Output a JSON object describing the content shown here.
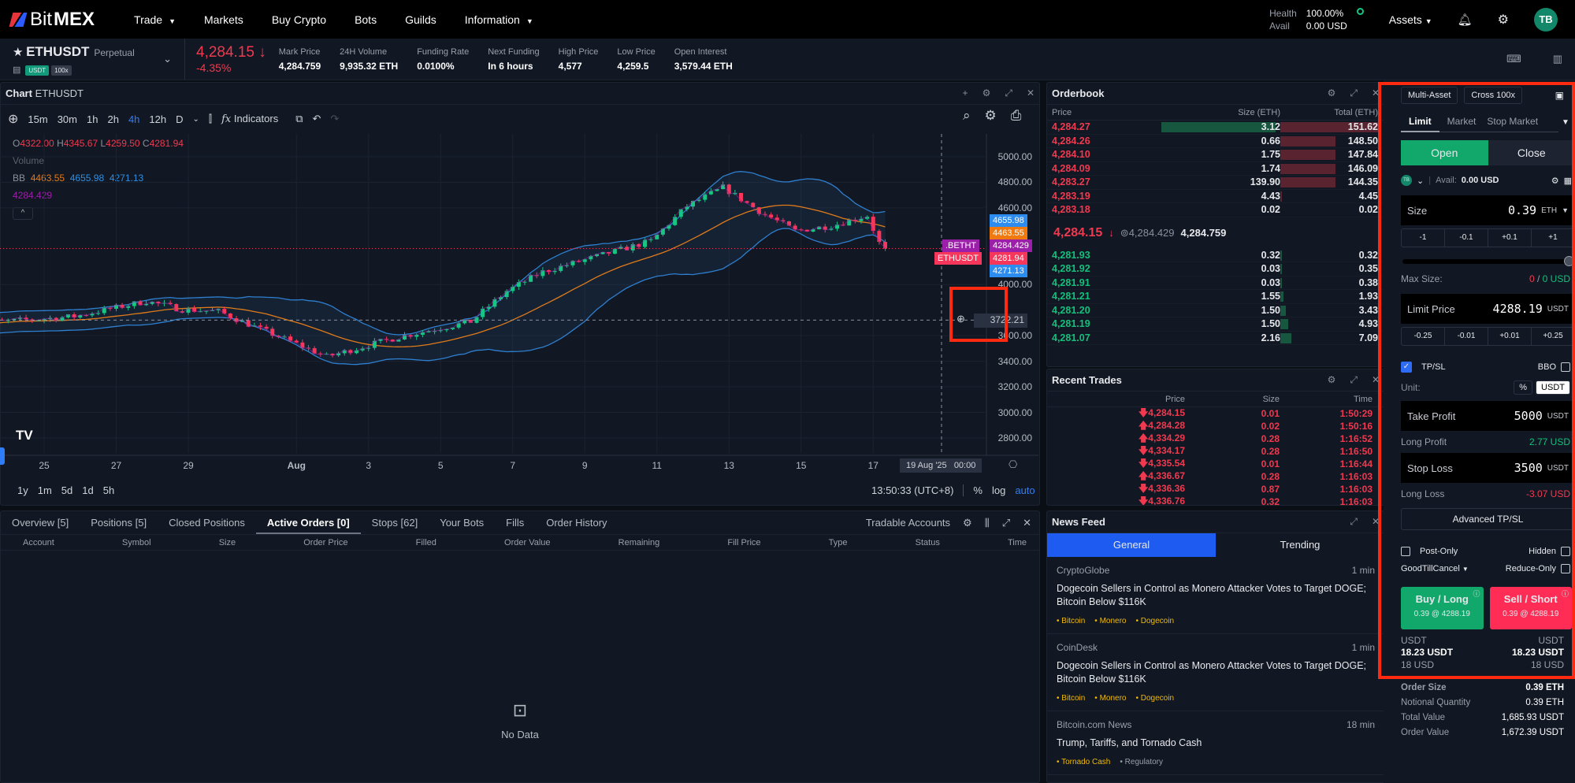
{
  "nav": {
    "brand_a": "Bit",
    "brand_b": "MEX",
    "items": [
      "Trade",
      "Markets",
      "Buy Crypto",
      "Bots",
      "Guilds",
      "Information"
    ],
    "health_label": "Health",
    "health_value": "100.00%",
    "avail_label": "Avail",
    "avail_value": "0.00 USD",
    "assets": "Assets",
    "avatar": "TB"
  },
  "ticker": {
    "symbol": "ETHUSDT",
    "type": "Perpetual",
    "badge_quote": "USDT",
    "badge_lev": "100x",
    "last": "4,284.15",
    "change": "-4.35%",
    "stats": [
      {
        "k": "Mark Price",
        "v": "4,284.759"
      },
      {
        "k": "24H Volume",
        "v": "9,935.32 ETH"
      },
      {
        "k": "Funding Rate",
        "v": "0.0100%"
      },
      {
        "k": "Next Funding",
        "v": "In 6 hours"
      },
      {
        "k": "High Price",
        "v": "4,577"
      },
      {
        "k": "Low Price",
        "v": "4,259.5"
      },
      {
        "k": "Open Interest",
        "v": "3,579.44 ETH"
      }
    ]
  },
  "chart": {
    "title": "Chart",
    "symbol": "ETHUSDT",
    "intervals": [
      "15m",
      "30m",
      "1h",
      "2h",
      "4h",
      "12h",
      "D"
    ],
    "active_interval": "4h",
    "indicators": "Indicators",
    "ohlc": {
      "o_l": "O",
      "o": "4322.00",
      "h_l": "H",
      "h": "4345.67",
      "l_l": "L",
      "l": "4259.50",
      "c_l": "C",
      "c": "4281.94"
    },
    "volume": "Volume",
    "bb_label": "BB",
    "bb_mid": "4463.55",
    "bb_up": "4655.98",
    "bb_low": "4271.13",
    "index_value": "4284.429",
    "y_ticks": [
      "5000.00",
      "4800.00",
      "4600.00",
      "4000.00",
      "3600.00",
      "3400.00",
      "3200.00",
      "3000.00",
      "2800.00"
    ],
    "y_tick_values": [
      5000,
      4800,
      4600,
      4000,
      3600,
      3400,
      3200,
      3000,
      2800
    ],
    "x_ticks": [
      "25",
      "27",
      "29",
      "Aug",
      "3",
      "5",
      "7",
      "9",
      "11",
      "13",
      "15",
      "17"
    ],
    "x_tick_days": [
      1,
      3,
      5,
      8,
      10,
      12,
      14,
      16,
      18,
      20,
      22,
      24
    ],
    "price_labels": {
      "upper": "4655.98",
      "mid": "4463.55",
      "index_sym": ".BETHT",
      "index": "4284.429",
      "last_sym": "ETHUSDT",
      "last": "4281.94",
      "lower": "4271.13",
      "crosshair": "3722.21"
    },
    "crosshair_date": "19 Aug '25   00:00",
    "ranges": [
      "1y",
      "1m",
      "5d",
      "1d",
      "5h"
    ],
    "clock": "13:50:33 (UTC+8)",
    "pct": "%",
    "log": "log",
    "auto": "auto",
    "path_keypoints": [
      [
        0,
        3700
      ],
      [
        1,
        3710
      ],
      [
        3,
        3750
      ],
      [
        5,
        3870
      ],
      [
        6,
        3805
      ],
      [
        7,
        3790
      ],
      [
        8,
        3670
      ],
      [
        9,
        3555
      ],
      [
        10,
        3436
      ],
      [
        12,
        3590
      ],
      [
        14,
        3710
      ],
      [
        15,
        3950
      ],
      [
        16,
        4100
      ],
      [
        18,
        4260
      ],
      [
        19,
        4340
      ],
      [
        20,
        4615
      ],
      [
        21,
        4760
      ],
      [
        22,
        4575
      ],
      [
        23,
        4420
      ],
      [
        24,
        4460
      ],
      [
        25,
        4540
      ],
      [
        25.4,
        4282
      ]
    ]
  },
  "orderbook": {
    "title": "Orderbook",
    "cols": [
      "Price",
      "Size (ETH)",
      "Total (ETH)"
    ],
    "asks": [
      [
        "4,284.27",
        "3.12",
        "151.62"
      ],
      [
        "4,284.26",
        "0.66",
        "148.50"
      ],
      [
        "4,284.10",
        "1.75",
        "147.84"
      ],
      [
        "4,284.09",
        "1.74",
        "146.09"
      ],
      [
        "4,283.27",
        "139.90",
        "144.35"
      ],
      [
        "4,283.19",
        "4.43",
        "4.45"
      ],
      [
        "4,283.18",
        "0.02",
        "0.02"
      ]
    ],
    "mid_last": "4,284.15",
    "mid_index": "4,284.429",
    "mid_mark": "4,284.759",
    "bids": [
      [
        "4,281.93",
        "0.32",
        "0.32"
      ],
      [
        "4,281.92",
        "0.03",
        "0.35"
      ],
      [
        "4,281.91",
        "0.03",
        "0.38"
      ],
      [
        "4,281.21",
        "1.55",
        "1.93"
      ],
      [
        "4,281.20",
        "1.50",
        "3.43"
      ],
      [
        "4,281.19",
        "1.50",
        "4.93"
      ],
      [
        "4,281.07",
        "2.16",
        "7.09"
      ]
    ]
  },
  "trades": {
    "title": "Recent Trades",
    "cols": [
      "Price",
      "Size",
      "Time"
    ],
    "rows": [
      [
        "down",
        "4,284.15",
        "0.01",
        "1:50:29"
      ],
      [
        "up",
        "4,284.28",
        "0.02",
        "1:50:16"
      ],
      [
        "up",
        "4,334.29",
        "0.28",
        "1:16:52"
      ],
      [
        "down",
        "4,334.17",
        "0.28",
        "1:16:50"
      ],
      [
        "down",
        "4,335.54",
        "0.01",
        "1:16:44"
      ],
      [
        "up",
        "4,336.67",
        "0.28",
        "1:16:03"
      ],
      [
        "down",
        "4,336.36",
        "0.87",
        "1:16:03"
      ],
      [
        "down",
        "4,336.76",
        "0.32",
        "1:16:03"
      ]
    ]
  },
  "bottom": {
    "tabs": [
      "Overview [5]",
      "Positions [5]",
      "Closed Positions",
      "Active Orders [0]",
      "Stops [62]",
      "Your Bots",
      "Fills",
      "Order History"
    ],
    "active": 3,
    "accounts": "Tradable Accounts",
    "cols": [
      "Account",
      "Symbol",
      "Size",
      "Order Price",
      "Filled",
      "Order Value",
      "Remaining",
      "Fill Price",
      "Type",
      "Status",
      "Time"
    ],
    "empty": "No Data"
  },
  "news": {
    "title": "News Feed",
    "tabs": [
      "General",
      "Trending"
    ],
    "items": [
      {
        "src": "CryptoGlobe",
        "time": "1 min",
        "head": "Dogecoin Sellers in Control as Monero Attacker Votes to Target DOGE; Bitcoin Below $116K",
        "tags": [
          "Bitcoin",
          "Monero",
          "Dogecoin"
        ]
      },
      {
        "src": "CoinDesk",
        "time": "1 min",
        "head": "Dogecoin Sellers in Control as Monero Attacker Votes to Target DOGE; Bitcoin Below $116K",
        "tags": [
          "Bitcoin",
          "Monero",
          "Dogecoin"
        ]
      },
      {
        "src": "Bitcoin.com News",
        "time": "18 min",
        "head": "Trump, Tariffs, and Tornado Cash",
        "tags": [
          "Tornado Cash",
          "Regulatory"
        ]
      }
    ]
  },
  "order": {
    "multi": "Multi-Asset",
    "cross": "Cross 100x",
    "types": [
      "Limit",
      "Market",
      "Stop Market"
    ],
    "open": "Open",
    "close": "Close",
    "acct_badge": "TB",
    "avail_label": "Avail:",
    "avail": "0.00 USD",
    "size_label": "Size",
    "size": "0.39",
    "size_unit": "ETH",
    "size_steps": [
      "-1",
      "-0.1",
      "+0.1",
      "+1"
    ],
    "slider_pct": 100,
    "max_label": "Max Size:",
    "max_a": "0",
    "max_sep": " / ",
    "max_b": "0 USD",
    "price_label": "Limit Price",
    "price": "4288.19",
    "price_unit": "USDT",
    "price_steps": [
      "-0.25",
      "-0.01",
      "+0.01",
      "+0.25"
    ],
    "tpsl": "TP/SL",
    "bbo": "BBO",
    "unit_label": "Unit:",
    "unit_pct": "%",
    "unit_usdt": "USDT",
    "tp_label": "Take Profit",
    "tp": "5000",
    "tp_unit": "USDT",
    "lp_label": "Long Profit",
    "lp": "2.77 USD",
    "sl_label": "Stop Loss",
    "sl": "3500",
    "sl_unit": "USDT",
    "ll_label": "Long Loss",
    "ll": "-3.07 USD",
    "adv": "Advanced TP/SL",
    "post_only": "Post-Only",
    "hidden": "Hidden",
    "tif": "GoodTillCancel",
    "reduce": "Reduce-Only",
    "buy": "Buy / Long",
    "sell": "Sell / Short",
    "buy_sub": "0.39 @ 4288.19",
    "sell_sub": "0.39 @ 4288.19",
    "cost_unit": "USDT",
    "cost_l": "18.23 USDT",
    "cost_r": "18.23 USDT",
    "cost_usd_l": "18 USD",
    "cost_usd_r": "18 USD",
    "summary": [
      [
        "Order Size",
        "0.39 ETH"
      ],
      [
        "Notional Quantity",
        "0.39 ETH"
      ],
      [
        "Total Value",
        "1,685.93 USDT"
      ],
      [
        "Order Value",
        "1,672.39 USDT"
      ]
    ]
  },
  "colors": {
    "green": "#13c07b",
    "red": "#f0394f",
    "bb": "#2e7fcf",
    "ma": "#e07b1a",
    "index": "#9b1fa8",
    "accent": "#2f7df6"
  }
}
